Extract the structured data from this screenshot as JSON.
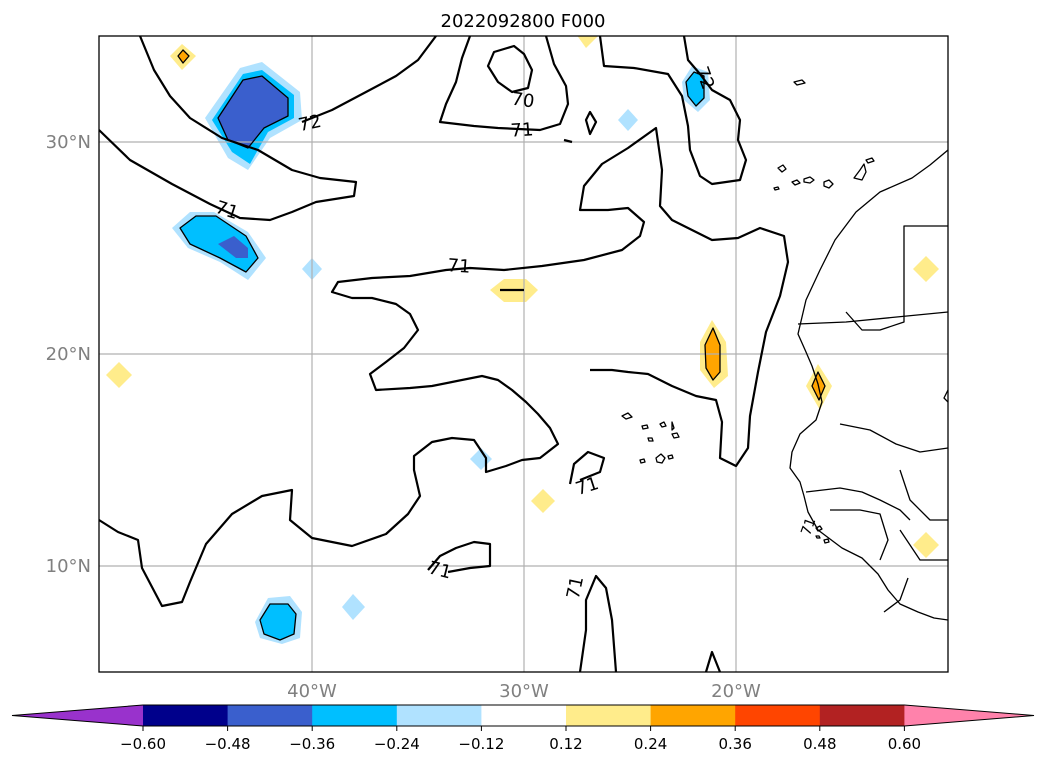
{
  "title": "2022092800 F000",
  "map": {
    "lon_min": -50,
    "lon_max": -10,
    "lat_min": 5,
    "lat_max": 35,
    "lat_ticks": [
      {
        "value": 10,
        "label": "10°N"
      },
      {
        "value": 20,
        "label": "20°N"
      },
      {
        "value": 30,
        "label": "30°N"
      }
    ],
    "lon_ticks": [
      {
        "value": -40,
        "label": "40°W"
      },
      {
        "value": -30,
        "label": "30°W"
      },
      {
        "value": -20,
        "label": "20°W"
      }
    ]
  },
  "contour_labels": [
    "72",
    "70",
    "71",
    "71",
    "71",
    "71",
    "71",
    "71",
    "72",
    "71"
  ],
  "colorbar": {
    "ticks": [
      "−0.60",
      "−0.48",
      "−0.36",
      "−0.24",
      "−0.12",
      "0.12",
      "0.24",
      "0.36",
      "0.48",
      "0.60"
    ],
    "colors": [
      "#9932cc",
      "#00008b",
      "#3a5fcd",
      "#00bfff",
      "#b0e2ff",
      "#ffffff",
      "#ffec8b",
      "#ffa500",
      "#ff4500",
      "#b22222",
      "#ff82ab"
    ]
  }
}
